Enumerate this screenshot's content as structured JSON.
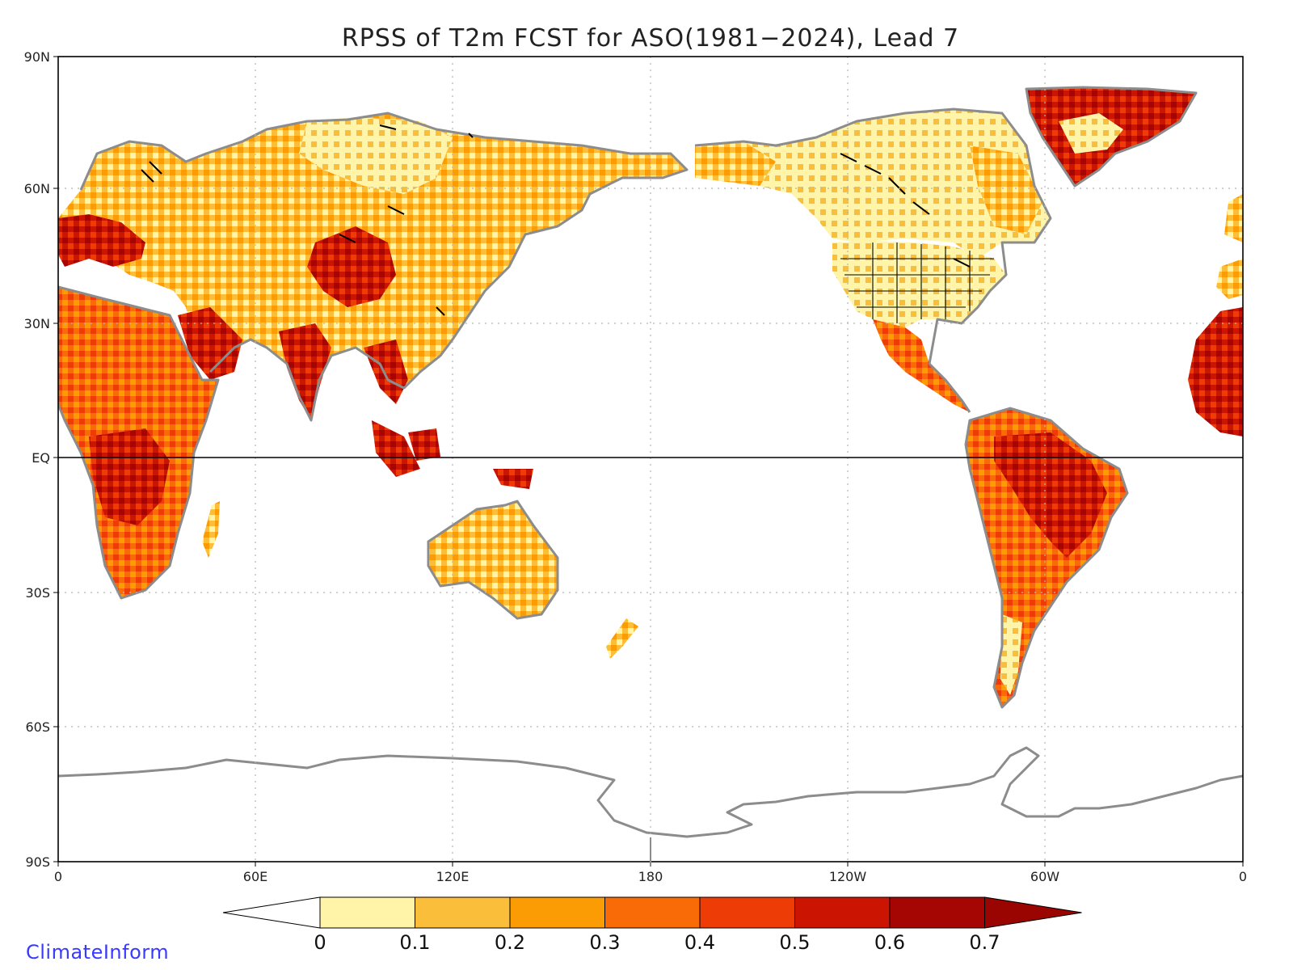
{
  "title": "RPSS of T2m FCST for ASO(1981−2024), Lead 7",
  "lat_labels": [
    "90N",
    "60N",
    "30N",
    "EQ",
    "30S",
    "60S",
    "90S"
  ],
  "lon_labels": [
    "0",
    "60E",
    "120E",
    "180",
    "120W",
    "60W",
    "0"
  ],
  "colorbar": {
    "labels": [
      "0",
      "0.1",
      "0.2",
      "0.3",
      "0.4",
      "0.5",
      "0.6",
      "0.7"
    ],
    "colors": [
      "#ffffff",
      "#fff4a8",
      "#fbbe3a",
      "#fb9c04",
      "#f86b06",
      "#ed3c06",
      "#cc1403",
      "#a60603",
      "#9b0501"
    ]
  },
  "brand": "ClimateInform",
  "legend_colors": {
    "coastline": "#8c8c8c",
    "lakes": "#000000",
    "background": "#ffffff"
  }
}
